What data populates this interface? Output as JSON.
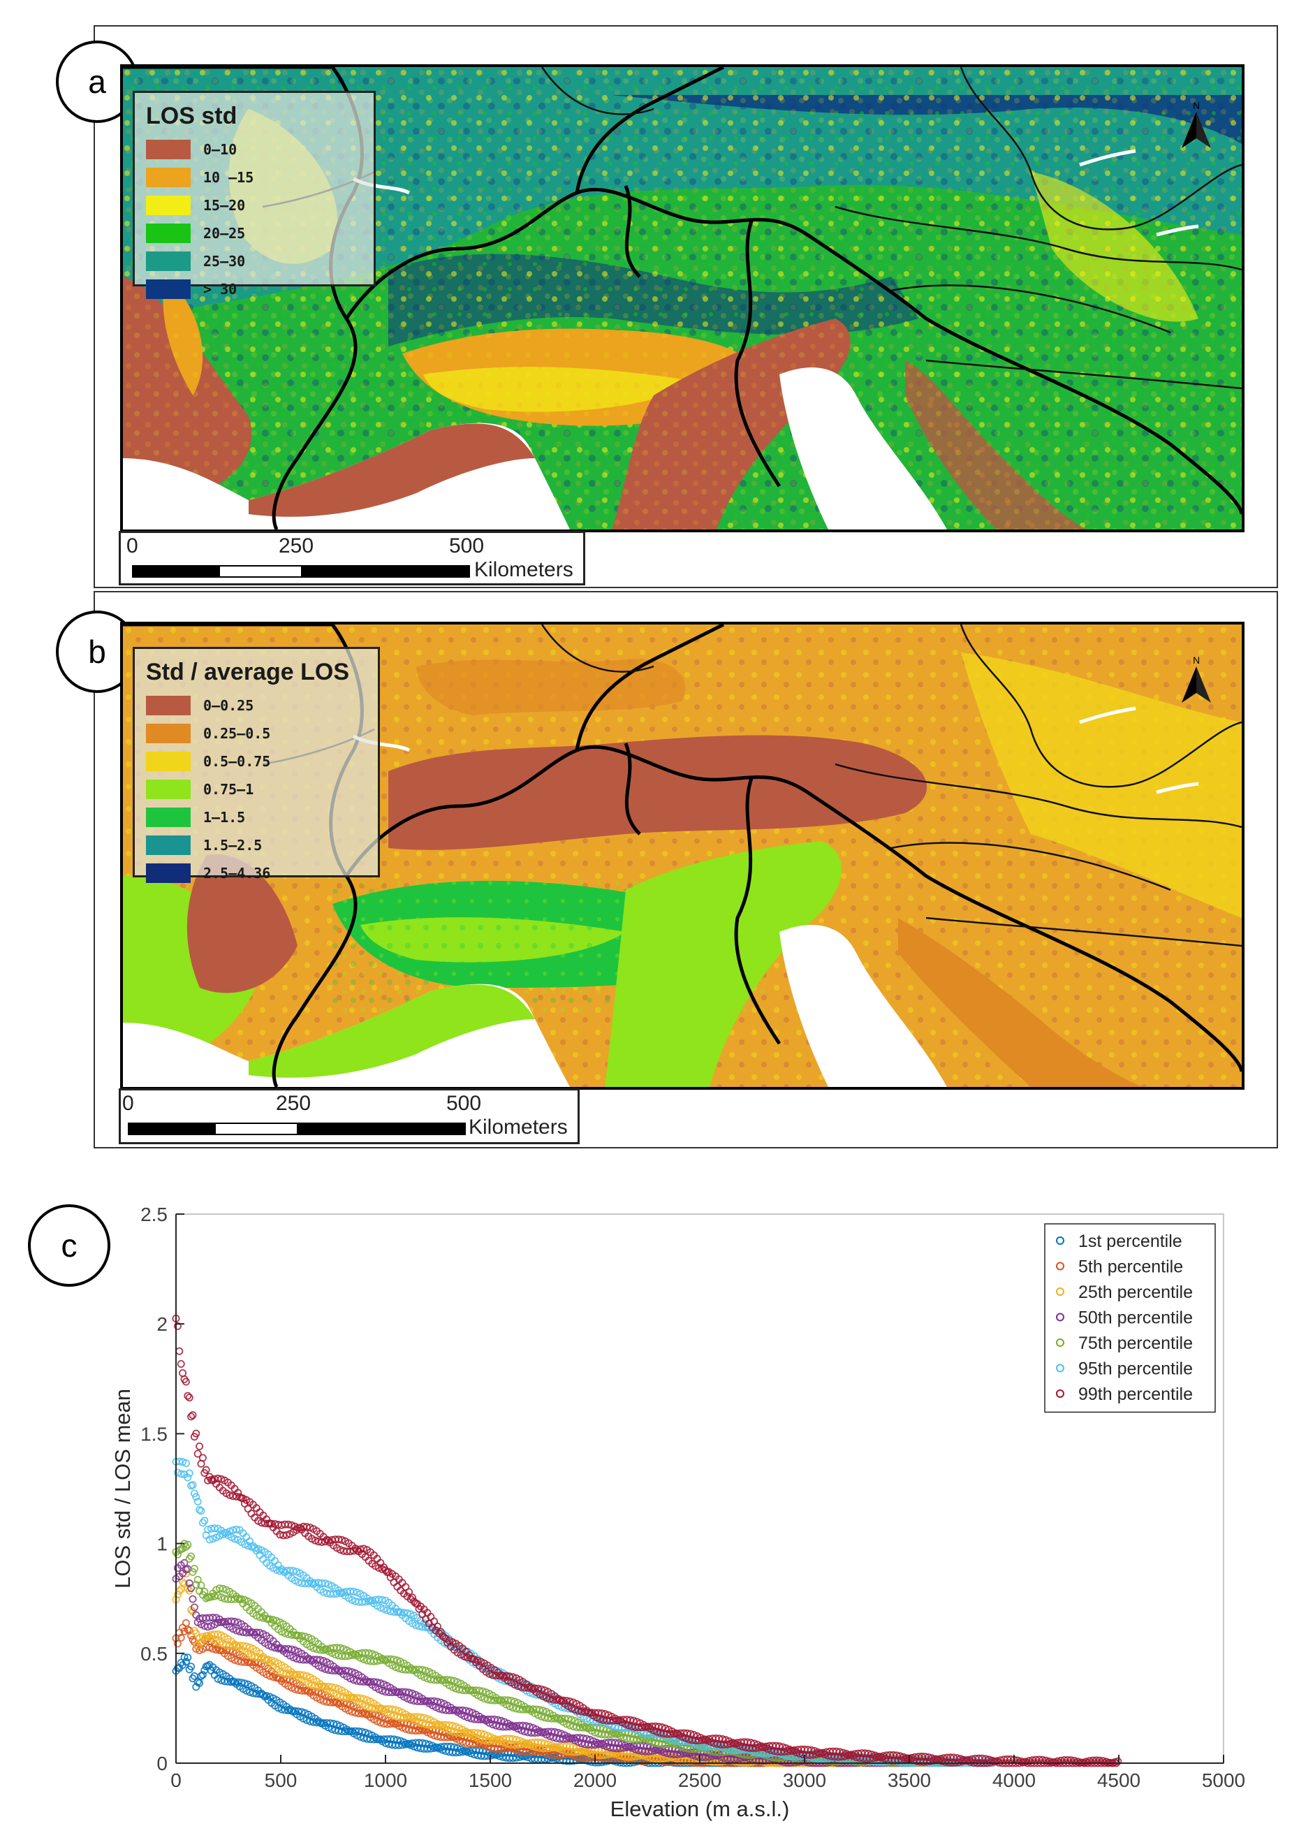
{
  "panels": {
    "a": {
      "badge": "a",
      "legend_title": "LOS std",
      "legend_items": [
        {
          "label": "0–10",
          "color": "#b85a42"
        },
        {
          "label": "10 –15",
          "color": "#eca31e"
        },
        {
          "label": "15–20",
          "color": "#f2ee15"
        },
        {
          "label": "20–25",
          "color": "#19c414"
        },
        {
          "label": "25–30",
          "color": "#1b9a88"
        },
        {
          "label": "> 30",
          "color": "#0d3780"
        }
      ],
      "north_label": "N",
      "scalebar": {
        "ticks": [
          "0",
          "250",
          "500"
        ],
        "unit": "Kilometers"
      }
    },
    "b": {
      "badge": "b",
      "legend_title": "Std / average LOS",
      "legend_items": [
        {
          "label": "0–0.25",
          "color": "#b85a42"
        },
        {
          "label": "0.25–0.5",
          "color": "#e08a24"
        },
        {
          "label": "0.5–0.75",
          "color": "#f1d51a"
        },
        {
          "label": "0.75–1",
          "color": "#8fe41c"
        },
        {
          "label": "1–1.5",
          "color": "#1ec43e"
        },
        {
          "label": "1.5–2.5",
          "color": "#1a9490"
        },
        {
          "label": "2.5–4.36",
          "color": "#0f2d78"
        }
      ],
      "north_label": "N",
      "scalebar": {
        "ticks": [
          "0",
          "250",
          "500"
        ],
        "unit": "Kilometers"
      }
    },
    "c": {
      "badge": "c"
    }
  },
  "chart_data": {
    "type": "scatter",
    "title": "",
    "xlabel": "Elevation (m a.s.l.)",
    "ylabel": "LOS std / LOS mean",
    "xlim": [
      0,
      5000
    ],
    "ylim": [
      0,
      2.5
    ],
    "xticks": [
      0,
      500,
      1000,
      1500,
      2000,
      2500,
      3000,
      3500,
      4000,
      4500,
      5000
    ],
    "yticks": [
      0,
      0.5,
      1,
      1.5,
      2,
      2.5
    ],
    "ytick_labels": [
      "0",
      "0.5",
      "1",
      "1.5",
      "2",
      "2.5"
    ],
    "grid": false,
    "legend_position": "top-right",
    "series": [
      {
        "name": "1st percentile",
        "color": "#0072bd",
        "x": [
          0,
          50,
          100,
          150,
          200,
          300,
          400,
          500,
          700,
          1000,
          1500,
          2000,
          2500,
          2800
        ],
        "y": [
          0.42,
          0.48,
          0.35,
          0.45,
          0.4,
          0.36,
          0.32,
          0.26,
          0.18,
          0.1,
          0.04,
          0.015,
          0.005,
          0
        ]
      },
      {
        "name": "5th percentile",
        "color": "#d95319",
        "x": [
          0,
          50,
          100,
          150,
          200,
          300,
          400,
          500,
          700,
          1000,
          1500,
          2000,
          2500,
          3000,
          3200
        ],
        "y": [
          0.55,
          0.63,
          0.52,
          0.55,
          0.52,
          0.48,
          0.44,
          0.38,
          0.3,
          0.19,
          0.08,
          0.03,
          0.01,
          0.003,
          0
        ]
      },
      {
        "name": "25th percentile",
        "color": "#edb120",
        "x": [
          0,
          50,
          100,
          150,
          200,
          300,
          400,
          500,
          700,
          1000,
          1500,
          2000,
          2500,
          3000,
          3300
        ],
        "y": [
          0.75,
          0.85,
          0.55,
          0.58,
          0.57,
          0.53,
          0.49,
          0.43,
          0.35,
          0.24,
          0.11,
          0.05,
          0.02,
          0.005,
          0
        ]
      },
      {
        "name": "50th percentile",
        "color": "#7e2f8e",
        "x": [
          0,
          50,
          100,
          150,
          200,
          300,
          400,
          500,
          700,
          1000,
          1500,
          2000,
          2500,
          3000,
          3500
        ],
        "y": [
          0.86,
          0.9,
          0.65,
          0.64,
          0.65,
          0.62,
          0.58,
          0.52,
          0.45,
          0.34,
          0.19,
          0.09,
          0.04,
          0.01,
          0
        ]
      },
      {
        "name": "75th percentile",
        "color": "#77ac30",
        "x": [
          0,
          50,
          100,
          150,
          200,
          300,
          400,
          500,
          700,
          1000,
          1500,
          2000,
          2500,
          3000,
          3500,
          3700
        ],
        "y": [
          0.95,
          1.0,
          0.82,
          0.75,
          0.78,
          0.75,
          0.68,
          0.62,
          0.52,
          0.47,
          0.3,
          0.15,
          0.07,
          0.025,
          0.008,
          0
        ]
      },
      {
        "name": "95th percentile",
        "color": "#4dbeee",
        "x": [
          0,
          50,
          100,
          150,
          200,
          300,
          400,
          500,
          700,
          1000,
          1200,
          1500,
          2000,
          2500,
          3000,
          3500,
          3900
        ],
        "y": [
          1.35,
          1.34,
          1.2,
          1.04,
          1.05,
          1.04,
          0.96,
          0.88,
          0.8,
          0.72,
          0.62,
          0.42,
          0.2,
          0.09,
          0.035,
          0.01,
          0
        ]
      },
      {
        "name": "99th percentile",
        "color": "#a2142f",
        "x": [
          0,
          25,
          50,
          100,
          150,
          200,
          300,
          400,
          500,
          600,
          700,
          900,
          1000,
          1100,
          1300,
          1500,
          2000,
          2500,
          3000,
          3500,
          4000,
          4500
        ],
        "y": [
          2.05,
          1.8,
          1.72,
          1.45,
          1.3,
          1.28,
          1.22,
          1.12,
          1.06,
          1.07,
          1.02,
          0.96,
          0.88,
          0.78,
          0.55,
          0.42,
          0.22,
          0.11,
          0.05,
          0.02,
          0.005,
          0
        ]
      }
    ]
  }
}
